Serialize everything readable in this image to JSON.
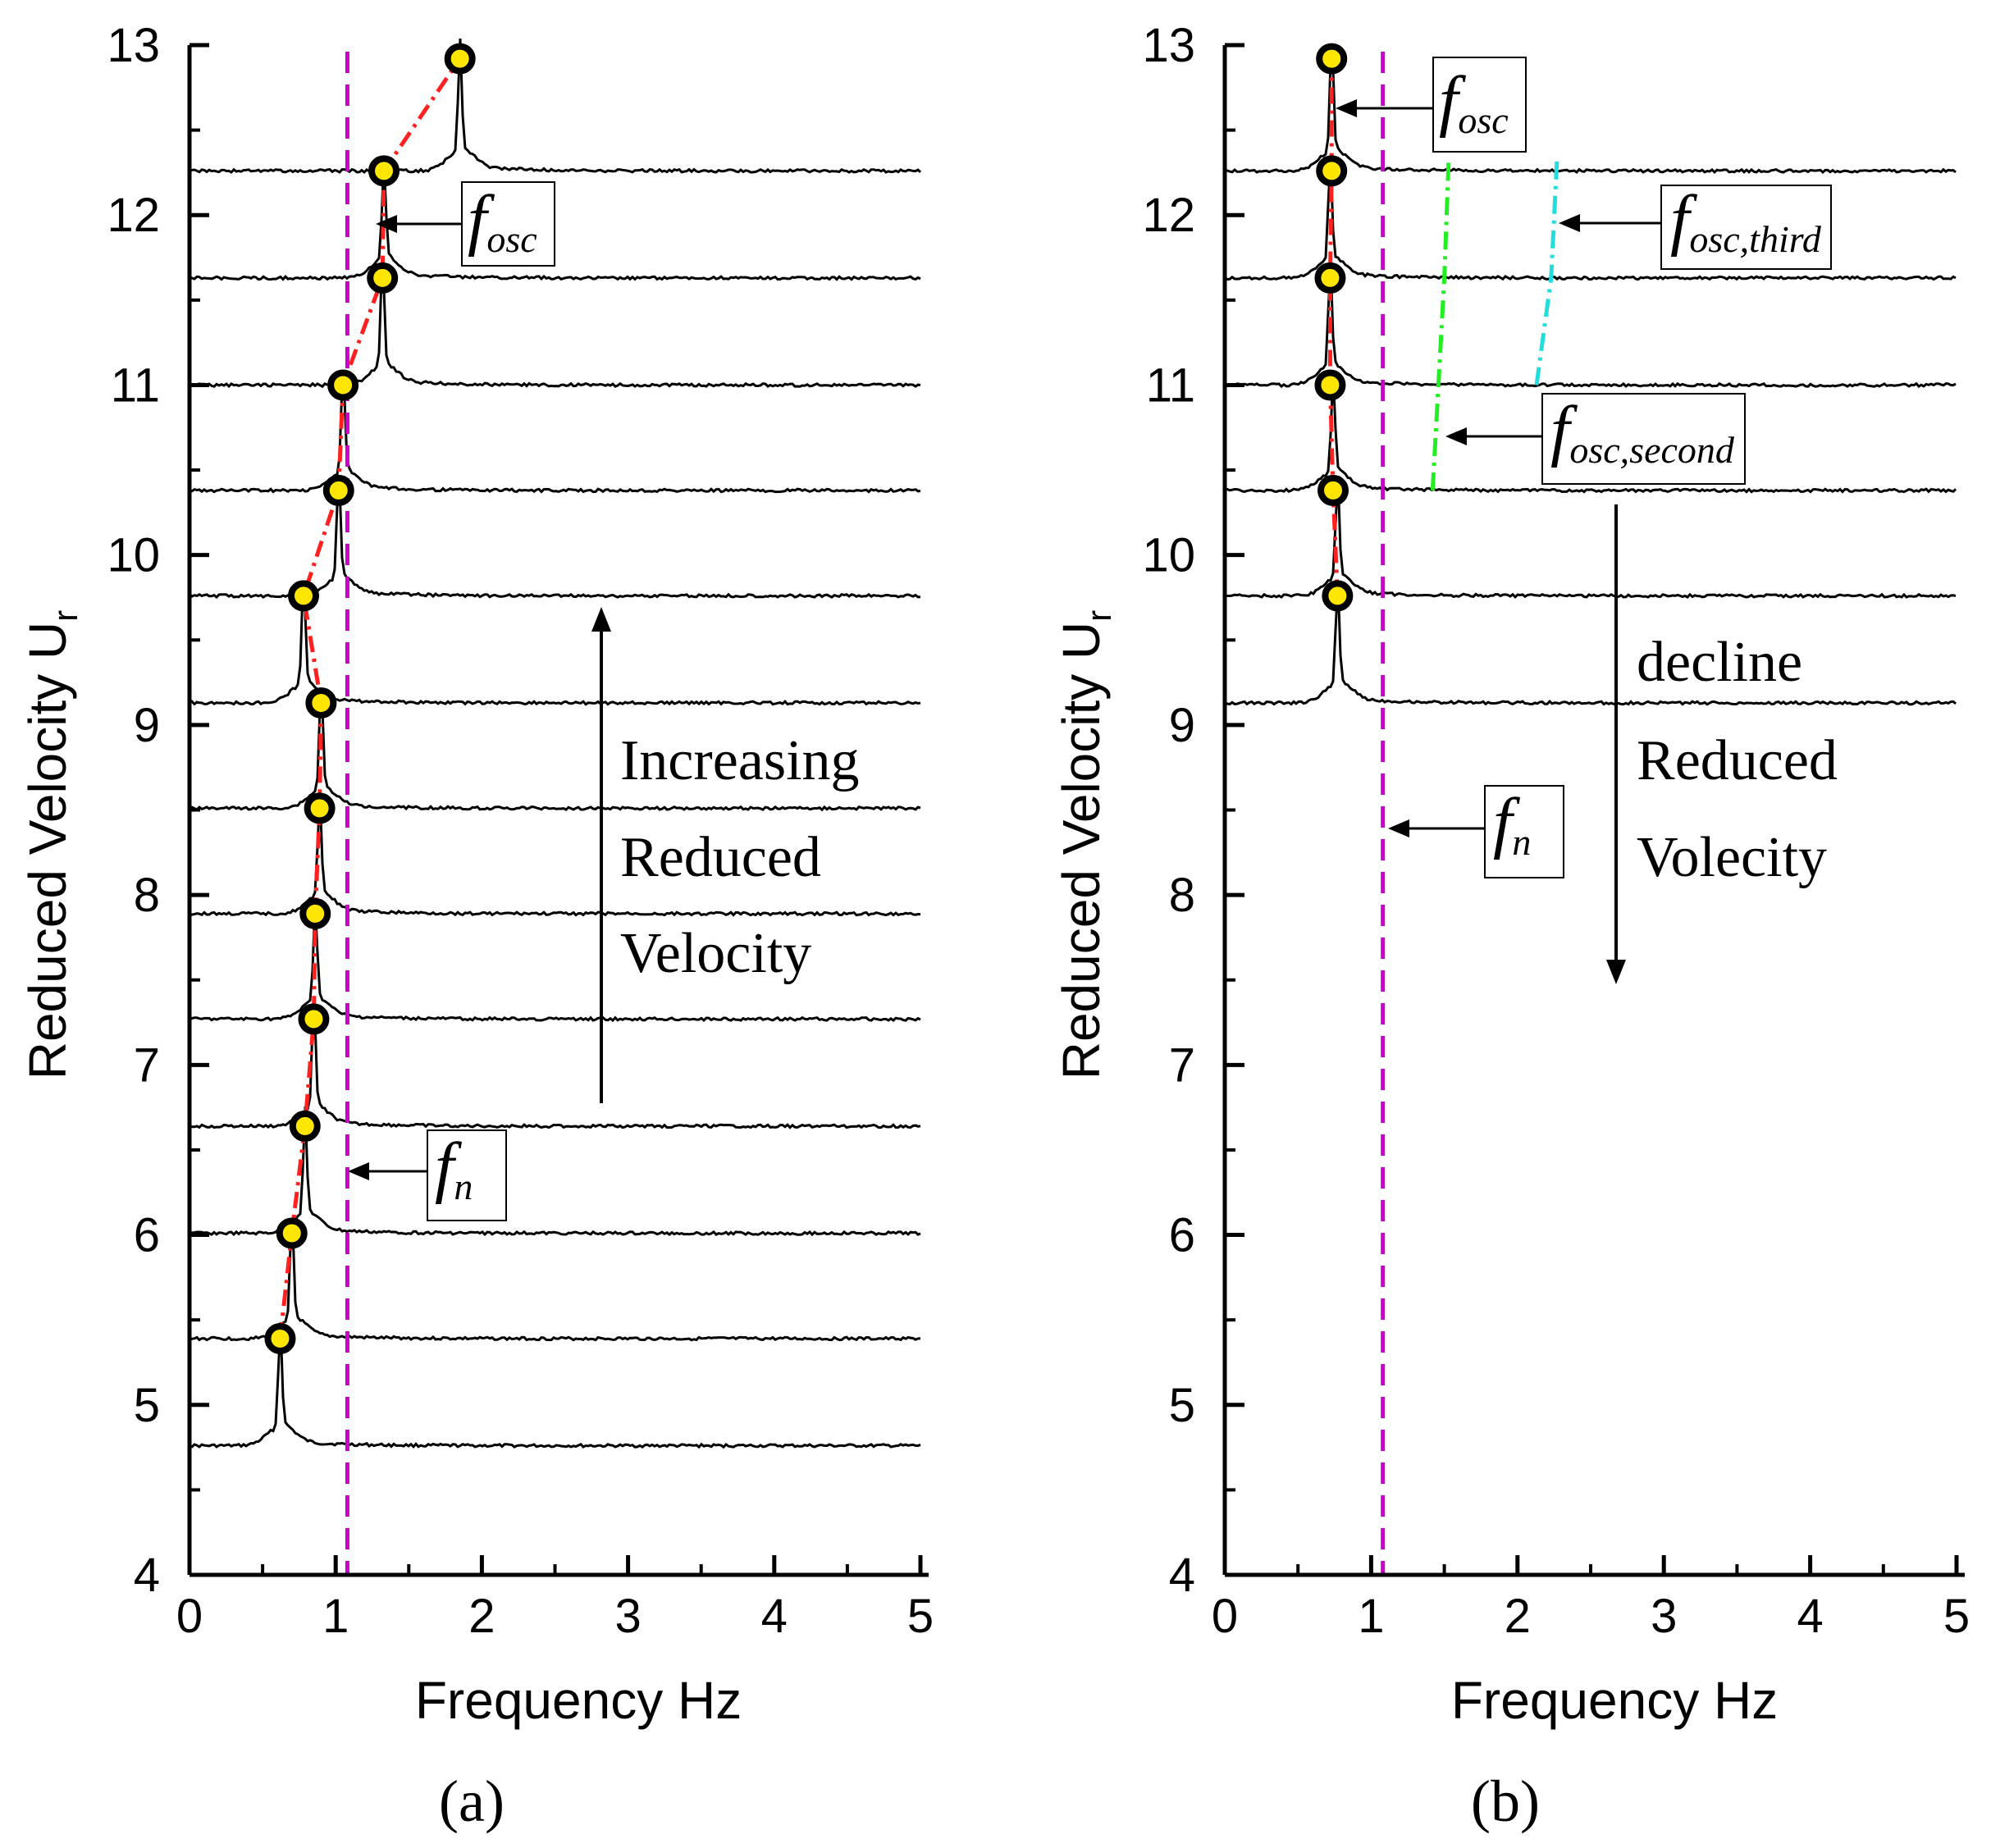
{
  "colors": {
    "axis": "#000000",
    "spectrum": "#000000",
    "fn_line": "#cc00cc",
    "trend": "#ff2020",
    "marker_ring": "#000000",
    "marker_fill": "#ffe600",
    "second": "#22ee22",
    "third": "#22dddd"
  },
  "chart_data": [
    {
      "id": "a",
      "type": "line",
      "panel_label": "(a)",
      "xlabel": "Frequency Hz",
      "ylabel": "Reduced Velocity U",
      "ylabel_sub": "r",
      "xlim": [
        0,
        5
      ],
      "ylim": [
        4,
        13
      ],
      "xticks": [
        0,
        1,
        2,
        3,
        4,
        5
      ],
      "yticks": [
        4,
        5,
        6,
        7,
        8,
        9,
        10,
        11,
        12,
        13
      ],
      "fn_frequency": 1.08,
      "baselines": [
        4.76,
        5.39,
        6.01,
        6.64,
        7.27,
        7.89,
        8.51,
        9.13,
        9.76,
        10.38,
        11.0,
        11.63,
        12.26
      ],
      "peak_frequencies": [
        0.62,
        0.7,
        0.79,
        0.85,
        0.86,
        0.89,
        0.9,
        0.78,
        1.02,
        1.05,
        1.32,
        1.33,
        1.85
      ],
      "markers": [
        {
          "f": 0.62,
          "u": 5.39
        },
        {
          "f": 0.7,
          "u": 6.01
        },
        {
          "f": 0.79,
          "u": 6.64
        },
        {
          "f": 0.85,
          "u": 7.27
        },
        {
          "f": 0.86,
          "u": 7.89
        },
        {
          "f": 0.89,
          "u": 8.51
        },
        {
          "f": 0.9,
          "u": 9.13
        },
        {
          "f": 0.78,
          "u": 9.76
        },
        {
          "f": 1.02,
          "u": 10.38
        },
        {
          "f": 1.05,
          "u": 11.0
        },
        {
          "f": 1.32,
          "u": 11.63
        },
        {
          "f": 1.33,
          "u": 12.26
        },
        {
          "f": 1.85,
          "u": 12.92
        }
      ],
      "annotations": {
        "arrow_text": [
          "Increasing",
          "Reduced",
          "Velocity"
        ],
        "arrow_direction": "up",
        "f_osc": {
          "main": "f",
          "sub": "osc"
        },
        "f_n": {
          "main": "f",
          "sub": "n"
        }
      }
    },
    {
      "id": "b",
      "type": "line",
      "panel_label": "(b)",
      "xlabel": "Frequency Hz",
      "ylabel": "Reduced Velocity U",
      "ylabel_sub": "r",
      "xlim": [
        0,
        5
      ],
      "ylim": [
        4,
        13
      ],
      "xticks": [
        0,
        1,
        2,
        3,
        4,
        5
      ],
      "yticks": [
        4,
        5,
        6,
        7,
        8,
        9,
        10,
        11,
        12,
        13
      ],
      "fn_frequency": 1.08,
      "baselines": [
        9.13,
        9.76,
        10.38,
        11.0,
        11.63,
        12.26
      ],
      "peak_frequencies": [
        0.77,
        0.77,
        0.74,
        0.72,
        0.72,
        0.73
      ],
      "markers": [
        {
          "f": 0.77,
          "u": 9.76
        },
        {
          "f": 0.74,
          "u": 10.38
        },
        {
          "f": 0.72,
          "u": 11.0
        },
        {
          "f": 0.72,
          "u": 11.63
        },
        {
          "f": 0.73,
          "u": 12.26
        },
        {
          "f": 0.73,
          "u": 12.92
        }
      ],
      "second_harmonic": [
        {
          "f": 1.42,
          "u": 10.38
        },
        {
          "f": 1.5,
          "u": 11.63
        },
        {
          "f": 1.53,
          "u": 12.33
        }
      ],
      "third_harmonic": [
        {
          "f": 2.13,
          "u": 11.0
        },
        {
          "f": 2.23,
          "u": 11.63
        },
        {
          "f": 2.27,
          "u": 12.33
        }
      ],
      "annotations": {
        "arrow_text": [
          "decline",
          "Reduced",
          "Volecity"
        ],
        "arrow_direction": "down",
        "f_osc": {
          "main": "f",
          "sub": "osc"
        },
        "f_osc_second": {
          "main": "f",
          "sub": "osc,second"
        },
        "f_osc_third": {
          "main": "f",
          "sub": "osc,third"
        },
        "f_n": {
          "main": "f",
          "sub": "n"
        }
      }
    }
  ]
}
